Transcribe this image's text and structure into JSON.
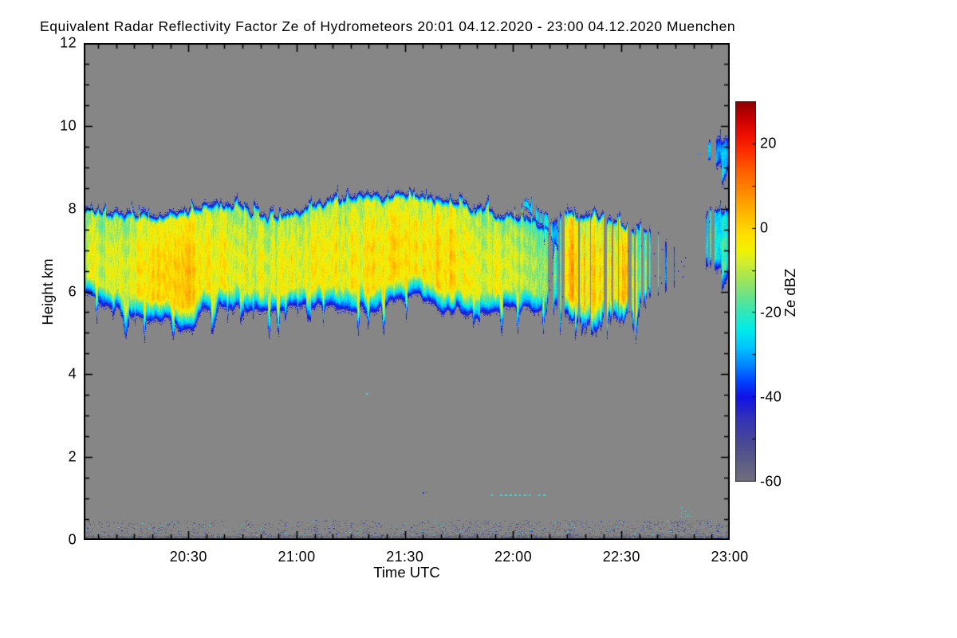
{
  "chart_data": {
    "type": "heatmap",
    "title": "Equivalent Radar Reflectivity Factor Ze of Hydrometeors   20:01 04.12.2020 - 23:00 04.12.2020 Muenchen",
    "xlabel": "Time UTC",
    "ylabel": "Height km",
    "time_start": "20:01",
    "time_end": "23:00",
    "station": "Muenchen",
    "duration_min": 179,
    "ylim": [
      0,
      12
    ],
    "y_major_ticks": [
      0,
      2,
      4,
      6,
      8,
      10,
      12
    ],
    "y_minor_step_km": 0.5,
    "x_major_ticks": [
      {
        "min": 29,
        "label": "20:30"
      },
      {
        "min": 59,
        "label": "21:00"
      },
      {
        "min": 89,
        "label": "21:30"
      },
      {
        "min": 119,
        "label": "22:00"
      },
      {
        "min": 149,
        "label": "22:30"
      },
      {
        "min": 179,
        "label": "23:00"
      }
    ],
    "x_minor_step_min": 5,
    "background_color": "#868686",
    "frame_color": "#000000",
    "colorbar": {
      "label": "Ze dBZ",
      "range": [
        -60,
        30
      ],
      "tick_values": [
        20,
        0,
        -20,
        -40,
        -60
      ],
      "minor_tick_step": 10,
      "colormap": [
        [
          -60,
          "#70707c"
        ],
        [
          -52,
          "#4e4e90"
        ],
        [
          -45,
          "#3232b8"
        ],
        [
          -40,
          "#1212e8"
        ],
        [
          -36,
          "#0048ff"
        ],
        [
          -32,
          "#008cff"
        ],
        [
          -28,
          "#00c8ff"
        ],
        [
          -24,
          "#00ecea"
        ],
        [
          -20,
          "#30e8bc"
        ],
        [
          -16,
          "#6ce288"
        ],
        [
          -12,
          "#a2e658"
        ],
        [
          -8,
          "#d4ee2e"
        ],
        [
          -5,
          "#f2f200"
        ],
        [
          -2,
          "#ffe200"
        ],
        [
          2,
          "#ffc400"
        ],
        [
          6,
          "#ffa200"
        ],
        [
          10,
          "#ff7e00"
        ],
        [
          14,
          "#ff5a00"
        ],
        [
          18,
          "#ff3000"
        ],
        [
          22,
          "#f01000"
        ],
        [
          26,
          "#c80000"
        ],
        [
          30,
          "#8c0000"
        ]
      ]
    },
    "cloud_segments": [
      {
        "name": "main-cloud-band",
        "samples": [
          [
            0,
            5.95,
            8.05,
            -8,
            0
          ],
          [
            4,
            5.75,
            8.0,
            -7,
            0
          ],
          [
            8,
            5.6,
            7.95,
            -6,
            0
          ],
          [
            12,
            5.5,
            7.9,
            -5,
            0
          ],
          [
            16,
            5.45,
            7.9,
            -4,
            0
          ],
          [
            20,
            5.3,
            7.9,
            -1,
            0
          ],
          [
            24,
            5.25,
            7.95,
            2,
            0
          ],
          [
            28,
            5.05,
            8.0,
            3,
            0
          ],
          [
            30,
            5.0,
            8.05,
            2,
            0
          ],
          [
            33,
            5.5,
            8.1,
            -2,
            0
          ],
          [
            37,
            5.6,
            8.2,
            -5,
            0
          ],
          [
            41,
            5.65,
            8.15,
            -6,
            0
          ],
          [
            45,
            5.55,
            8.0,
            -6,
            0
          ],
          [
            49,
            5.45,
            7.85,
            -6,
            0
          ],
          [
            53,
            5.55,
            7.8,
            -7,
            0
          ],
          [
            58,
            5.65,
            7.9,
            -6,
            0
          ],
          [
            63,
            5.7,
            8.1,
            -5,
            0
          ],
          [
            68,
            5.6,
            8.25,
            -5,
            0
          ],
          [
            73,
            5.55,
            8.3,
            -4,
            0
          ],
          [
            78,
            5.55,
            8.35,
            -4,
            0
          ],
          [
            83,
            5.65,
            8.35,
            -3,
            0
          ],
          [
            88,
            5.85,
            8.4,
            -1,
            0
          ],
          [
            92,
            5.9,
            8.4,
            -2,
            0
          ],
          [
            96,
            5.65,
            8.3,
            -3,
            0
          ],
          [
            100,
            5.5,
            8.2,
            -1,
            0
          ],
          [
            104,
            5.55,
            8.15,
            -3,
            0
          ],
          [
            108,
            5.4,
            8.05,
            -5,
            0
          ],
          [
            112,
            5.45,
            7.95,
            -6,
            0
          ],
          [
            116,
            5.55,
            7.9,
            -7,
            0
          ],
          [
            120,
            5.6,
            7.85,
            -8,
            0.05
          ],
          [
            124,
            5.5,
            7.8,
            -10,
            0.12
          ],
          [
            128,
            5.6,
            7.6,
            -12,
            0.3
          ],
          [
            130,
            5.8,
            7.5,
            -16,
            0.5
          ],
          [
            132,
            5.6,
            7.9,
            -14,
            0.4
          ],
          [
            134,
            5.5,
            8.0,
            4,
            0.1
          ],
          [
            136,
            5.3,
            7.95,
            1,
            0.15
          ],
          [
            138,
            5.1,
            7.85,
            -2,
            0.2
          ],
          [
            140,
            5.2,
            7.9,
            0,
            0.2
          ],
          [
            142,
            5.0,
            7.95,
            -1,
            0.2
          ],
          [
            144,
            5.4,
            7.85,
            -6,
            0.3
          ],
          [
            146,
            5.4,
            7.8,
            -4,
            0.3
          ],
          [
            148,
            5.3,
            7.7,
            -1,
            0.2
          ],
          [
            150,
            5.4,
            7.6,
            1,
            0.25
          ],
          [
            152,
            5.6,
            7.55,
            -8,
            0.4
          ],
          [
            154,
            5.7,
            7.5,
            -14,
            0.5
          ],
          [
            156,
            5.8,
            7.45,
            -18,
            0.55
          ],
          [
            158,
            5.8,
            7.4,
            -20,
            0.6
          ],
          [
            160,
            5.9,
            7.3,
            -24,
            0.7
          ],
          [
            162,
            6.0,
            7.2,
            -28,
            0.8
          ],
          [
            164,
            6.1,
            7.05,
            -30,
            0.85
          ],
          [
            166,
            6.0,
            6.9,
            -32,
            0.9
          ],
          [
            167.5,
            6.2,
            6.8,
            -34,
            0.95
          ]
        ]
      },
      {
        "name": "upper-filament",
        "samples": [
          [
            122,
            7.95,
            8.25,
            -22,
            0.2
          ],
          [
            126,
            7.7,
            8.05,
            -24,
            0.25
          ],
          [
            129,
            7.4,
            7.8,
            -25,
            0.3
          ],
          [
            131.5,
            7.1,
            7.5,
            -26,
            0.35
          ]
        ]
      },
      {
        "name": "right-edge-patch",
        "samples": [
          [
            172.4,
            6.6,
            7.9,
            -24,
            0.3
          ],
          [
            175,
            6.55,
            8.0,
            -20,
            0.2
          ],
          [
            179,
            6.6,
            8.05,
            -22,
            0.25
          ]
        ]
      },
      {
        "name": "high-cirrus-patch",
        "samples": [
          [
            173,
            9.15,
            9.5,
            -30,
            0.3
          ],
          [
            175.5,
            9.05,
            9.7,
            -28,
            0.2
          ],
          [
            179,
            9.2,
            9.75,
            -30,
            0.3
          ]
        ]
      }
    ],
    "surface_clutter": {
      "height_max_km": 0.5,
      "base_density": 0.38,
      "dense_periods_min": [
        [
          95,
          137
        ],
        [
          147,
          179
        ]
      ],
      "colors": [
        "#6a6a76",
        "#4f53a0",
        "#2838cc",
        "#38d8d8"
      ],
      "color_weights": [
        0.6,
        0.25,
        0.09,
        0.06
      ]
    },
    "point_features": [
      {
        "type": "dash-line",
        "t0": 113,
        "t1": 128,
        "h": 1.1,
        "color": "#2ee0e0"
      },
      {
        "type": "cluster",
        "t0": 165.5,
        "t1": 168.5,
        "h0": 0.55,
        "h1": 0.8,
        "color": "#2ee0e0"
      },
      {
        "type": "dot",
        "t": 78.3,
        "h": 3.55,
        "color": "#35dede"
      },
      {
        "type": "dot",
        "t": 94,
        "h": 1.15,
        "color": "#2838cc"
      },
      {
        "type": "dot",
        "t": 170.2,
        "h": 9.35,
        "color": "#2288ee"
      }
    ]
  }
}
